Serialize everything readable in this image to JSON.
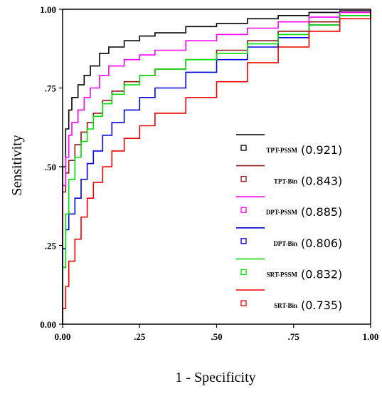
{
  "chart_data": {
    "type": "line",
    "title": "",
    "xlabel": "1 - Specificity",
    "ylabel": "Sensitivity",
    "xlim": [
      0,
      1
    ],
    "ylim": [
      0,
      1
    ],
    "x_ticks": [
      "0.00",
      ".25",
      ".50",
      ".75",
      "1.00"
    ],
    "y_ticks": [
      "0.00",
      ".25",
      ".50",
      ".75",
      "1.00"
    ],
    "grid": false,
    "legend_position": "bottom-right",
    "series": [
      {
        "name": "TPT-PSSM",
        "auc": "(0.921)",
        "color": "#000000",
        "points": [
          [
            0,
            0
          ],
          [
            0,
            0.5
          ],
          [
            0.01,
            0.62
          ],
          [
            0.02,
            0.68
          ],
          [
            0.03,
            0.72
          ],
          [
            0.05,
            0.76
          ],
          [
            0.07,
            0.79
          ],
          [
            0.09,
            0.82
          ],
          [
            0.12,
            0.86
          ],
          [
            0.15,
            0.88
          ],
          [
            0.2,
            0.9
          ],
          [
            0.25,
            0.915
          ],
          [
            0.3,
            0.925
          ],
          [
            0.4,
            0.945
          ],
          [
            0.5,
            0.955
          ],
          [
            0.6,
            0.97
          ],
          [
            0.7,
            0.98
          ],
          [
            0.8,
            0.99
          ],
          [
            0.9,
            0.995
          ],
          [
            1,
            1
          ]
        ]
      },
      {
        "name": "TPT-Bin",
        "auc": "(0.843)",
        "color": "#8b1a1a",
        "points": [
          [
            0,
            0
          ],
          [
            0,
            0.42
          ],
          [
            0.01,
            0.48
          ],
          [
            0.02,
            0.52
          ],
          [
            0.04,
            0.57
          ],
          [
            0.06,
            0.61
          ],
          [
            0.08,
            0.64
          ],
          [
            0.1,
            0.67
          ],
          [
            0.13,
            0.71
          ],
          [
            0.16,
            0.74
          ],
          [
            0.2,
            0.77
          ],
          [
            0.25,
            0.79
          ],
          [
            0.3,
            0.81
          ],
          [
            0.4,
            0.84
          ],
          [
            0.5,
            0.87
          ],
          [
            0.6,
            0.9
          ],
          [
            0.7,
            0.93
          ],
          [
            0.8,
            0.96
          ],
          [
            0.9,
            0.99
          ],
          [
            1,
            1
          ]
        ]
      },
      {
        "name": "DPT-PSSM",
        "auc": "(0.885)",
        "color": "#ff00ff",
        "points": [
          [
            0,
            0
          ],
          [
            0,
            0.44
          ],
          [
            0.01,
            0.53
          ],
          [
            0.02,
            0.6
          ],
          [
            0.03,
            0.64
          ],
          [
            0.05,
            0.68
          ],
          [
            0.07,
            0.72
          ],
          [
            0.09,
            0.75
          ],
          [
            0.12,
            0.79
          ],
          [
            0.15,
            0.82
          ],
          [
            0.2,
            0.84
          ],
          [
            0.25,
            0.855
          ],
          [
            0.3,
            0.87
          ],
          [
            0.4,
            0.9
          ],
          [
            0.5,
            0.92
          ],
          [
            0.6,
            0.94
          ],
          [
            0.7,
            0.96
          ],
          [
            0.8,
            0.975
          ],
          [
            0.9,
            0.99
          ],
          [
            1,
            1
          ]
        ]
      },
      {
        "name": "DPT-Bin",
        "auc": "(0.806)",
        "color": "#0000dd",
        "points": [
          [
            0,
            0
          ],
          [
            0,
            0.24
          ],
          [
            0.01,
            0.3
          ],
          [
            0.02,
            0.35
          ],
          [
            0.04,
            0.4
          ],
          [
            0.06,
            0.46
          ],
          [
            0.08,
            0.51
          ],
          [
            0.1,
            0.55
          ],
          [
            0.13,
            0.6
          ],
          [
            0.16,
            0.64
          ],
          [
            0.2,
            0.68
          ],
          [
            0.25,
            0.72
          ],
          [
            0.3,
            0.75
          ],
          [
            0.4,
            0.8
          ],
          [
            0.5,
            0.84
          ],
          [
            0.6,
            0.88
          ],
          [
            0.7,
            0.91
          ],
          [
            0.8,
            0.95
          ],
          [
            0.9,
            0.98
          ],
          [
            1,
            1
          ]
        ]
      },
      {
        "name": "SRT-PSSM",
        "auc": "(0.832)",
        "color": "#00dd00",
        "points": [
          [
            0,
            0
          ],
          [
            0,
            0.18
          ],
          [
            0.01,
            0.35
          ],
          [
            0.02,
            0.46
          ],
          [
            0.04,
            0.53
          ],
          [
            0.06,
            0.58
          ],
          [
            0.08,
            0.62
          ],
          [
            0.1,
            0.66
          ],
          [
            0.13,
            0.7
          ],
          [
            0.16,
            0.73
          ],
          [
            0.2,
            0.76
          ],
          [
            0.25,
            0.79
          ],
          [
            0.3,
            0.81
          ],
          [
            0.4,
            0.84
          ],
          [
            0.5,
            0.86
          ],
          [
            0.6,
            0.89
          ],
          [
            0.7,
            0.92
          ],
          [
            0.8,
            0.95
          ],
          [
            0.9,
            0.98
          ],
          [
            1,
            1
          ]
        ]
      },
      {
        "name": "SRT-Bin",
        "auc": "(0.735)",
        "color": "#ee0000",
        "points": [
          [
            0,
            0
          ],
          [
            0,
            0.05
          ],
          [
            0.01,
            0.12
          ],
          [
            0.02,
            0.2
          ],
          [
            0.04,
            0.27
          ],
          [
            0.06,
            0.34
          ],
          [
            0.08,
            0.4
          ],
          [
            0.1,
            0.45
          ],
          [
            0.13,
            0.5
          ],
          [
            0.16,
            0.55
          ],
          [
            0.2,
            0.59
          ],
          [
            0.25,
            0.63
          ],
          [
            0.3,
            0.67
          ],
          [
            0.4,
            0.72
          ],
          [
            0.5,
            0.77
          ],
          [
            0.6,
            0.83
          ],
          [
            0.7,
            0.88
          ],
          [
            0.8,
            0.93
          ],
          [
            0.9,
            0.97
          ],
          [
            1,
            1
          ]
        ]
      }
    ]
  }
}
